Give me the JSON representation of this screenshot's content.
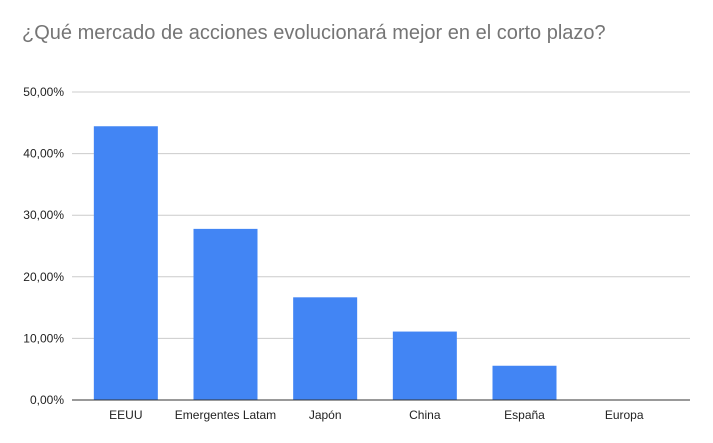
{
  "chart_data": {
    "type": "bar",
    "title": "¿Qué mercado de acciones evolucionará mejor en el corto plazo?",
    "categories": [
      "EEUU",
      "Emergentes Latam",
      "Japón",
      "China",
      "España",
      "Europa"
    ],
    "values": [
      44.44,
      27.78,
      16.67,
      11.11,
      5.56,
      0
    ],
    "ylim": [
      0,
      50
    ],
    "yticks": [
      0,
      10,
      20,
      30,
      40,
      50
    ],
    "ytick_labels": [
      "0,00%",
      "10,00%",
      "20,00%",
      "30,00%",
      "40,00%",
      "50,00%"
    ],
    "xlabel": "",
    "ylabel": "",
    "grid": true,
    "legend": "none",
    "colors": {
      "bar": "#4285f4",
      "grid": "#cccccc",
      "axis": "#333333",
      "title": "#757575",
      "text": "#222222"
    }
  }
}
